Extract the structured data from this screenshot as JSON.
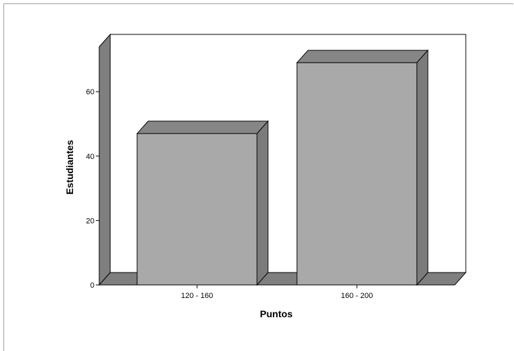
{
  "chart_data": {
    "type": "bar",
    "categories": [
      "120 - 160",
      "160 - 200"
    ],
    "values": [
      47,
      69
    ],
    "xlabel": "Puntos",
    "ylabel": "Estudiantes",
    "ylim": [
      0,
      70
    ],
    "yticks": [
      "0",
      "20",
      "40",
      "60"
    ],
    "grid": false,
    "three_d": true,
    "bar_color": "#a9a9a9",
    "bar_side_color": "#7b7b7b",
    "bar_top_color": "#868686",
    "wall_color": "#7f7f7f"
  }
}
